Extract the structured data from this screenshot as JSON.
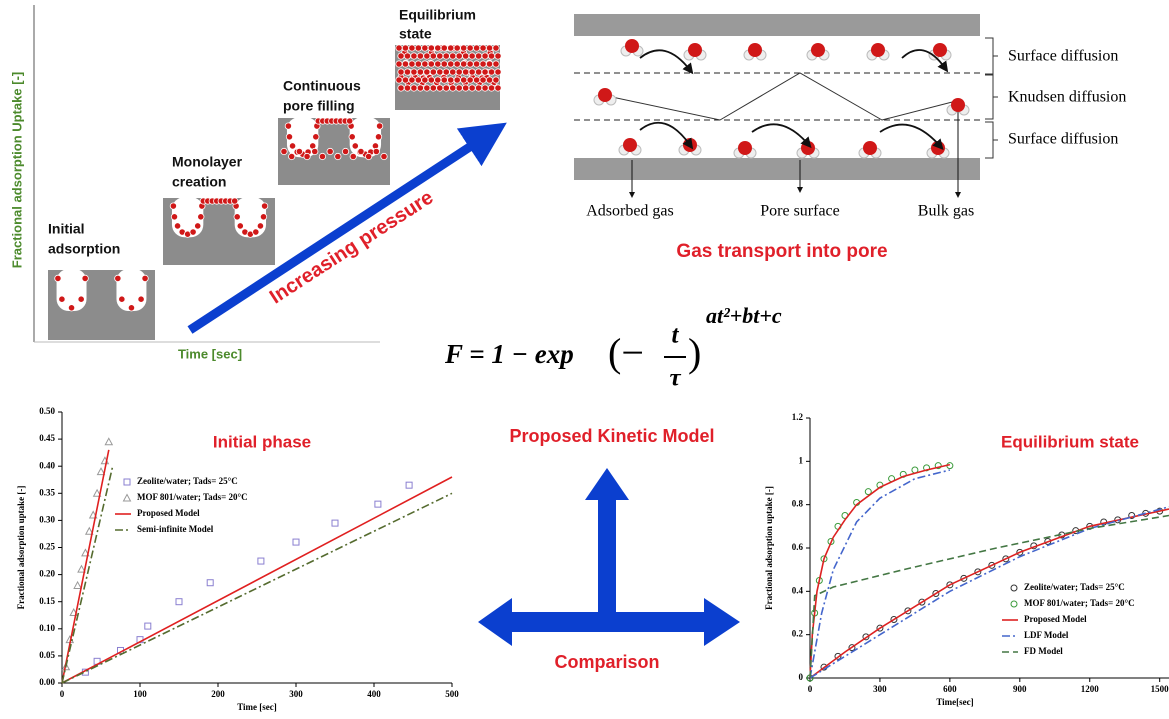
{
  "stages": {
    "y_label": "Fractional adsorption Uptake [-]",
    "x_label": "Time [sec]",
    "arrow_label": "Increasing pressure",
    "items": [
      "Initial",
      "adsorption",
      "Monolayer",
      "creation",
      "Continuous",
      "pore filling",
      "Equilibrium",
      "state"
    ]
  },
  "transport": {
    "title": "Gas transport into pore",
    "layers": [
      "Surface diffusion",
      "Knudsen diffusion",
      "Surface diffusion"
    ],
    "labels": [
      "Adsorbed gas",
      "Pore surface",
      "Bulk gas"
    ]
  },
  "equation": {
    "lhs": "F = 1 − exp",
    "open": "(−",
    "numerator": "t",
    "denominator": "τ",
    "close": ")",
    "exponent": "at²+bt+c"
  },
  "center": {
    "title": "Proposed Kinetic Model",
    "label": "Comparison"
  },
  "chart_data": [
    {
      "type": "line",
      "title": "Initial phase",
      "xlabel": "Time [sec]",
      "ylabel": "Fractional adsorption uptake [-]",
      "xlim": [
        0,
        500
      ],
      "xticks": [
        0,
        100,
        200,
        300,
        400,
        500
      ],
      "ylim": [
        0,
        0.5
      ],
      "yticks": [
        {
          "value": 0,
          "label": "0.00"
        },
        {
          "value": 0.05,
          "label": "0.05"
        },
        {
          "value": 0.1,
          "label": "0.10"
        },
        {
          "value": 0.15,
          "label": "0.15"
        },
        {
          "value": 0.2,
          "label": "0.20"
        },
        {
          "value": 0.25,
          "label": "0.25"
        },
        {
          "value": 0.3,
          "label": "0.30"
        },
        {
          "value": 0.35,
          "label": "0.35"
        },
        {
          "value": 0.4,
          "label": "0.40"
        },
        {
          "value": 0.45,
          "label": "0.45"
        },
        {
          "value": 0.5,
          "label": "0.50"
        }
      ],
      "legend": "upper left",
      "series": [
        {
          "name": "Zeolite/water; Tads= 25°C",
          "color": "#8a7fd0",
          "marker": "square",
          "x": [
            30,
            45,
            75,
            100,
            110,
            150,
            190,
            255,
            300,
            350,
            405,
            445
          ],
          "values": [
            0.02,
            0.04,
            0.06,
            0.08,
            0.105,
            0.15,
            0.185,
            0.225,
            0.26,
            0.295,
            0.33,
            0.365
          ]
        },
        {
          "name": "MOF 801/water; Tads= 20°C",
          "color": "#999999",
          "marker": "triangle",
          "x": [
            5,
            10,
            15,
            20,
            25,
            30,
            35,
            40,
            45,
            50,
            55,
            60
          ],
          "values": [
            0.03,
            0.08,
            0.13,
            0.18,
            0.21,
            0.24,
            0.28,
            0.31,
            0.35,
            0.39,
            0.41,
            0.445
          ]
        },
        {
          "name": "Proposed Model",
          "color": "#e02020",
          "dash": "solid",
          "x": [
            0,
            60,
            null,
            0,
            500
          ],
          "values": [
            0,
            0.43,
            null,
            0,
            0.38
          ]
        },
        {
          "name": "Semi-infinite Model",
          "color": "#556b2f",
          "dash": "dashdot",
          "x": [
            0,
            65,
            null,
            0,
            500
          ],
          "values": [
            0,
            0.4,
            null,
            0,
            0.35
          ]
        }
      ]
    },
    {
      "type": "line",
      "title": "Equilibrium state",
      "xlabel": "Time[sec]",
      "ylabel": "Fractional adsorption uptake [-]",
      "xlim": [
        0,
        1540
      ],
      "xticks": [
        0,
        300,
        600,
        900,
        1200,
        1500
      ],
      "ylim": [
        0,
        1.2
      ],
      "yticks": [
        0,
        0.2,
        0.4,
        0.6,
        0.8,
        1,
        1.2
      ],
      "legend": "lower right",
      "series": [
        {
          "name": "Zeolite/water; Tads= 25°C",
          "color": "#333333",
          "marker": "circle",
          "x": [
            0,
            60,
            120,
            180,
            240,
            300,
            360,
            420,
            480,
            540,
            600,
            660,
            720,
            780,
            840,
            900,
            960,
            1020,
            1080,
            1140,
            1200,
            1260,
            1320,
            1380,
            1440,
            1500
          ],
          "values": [
            0,
            0.05,
            0.1,
            0.14,
            0.19,
            0.23,
            0.27,
            0.31,
            0.35,
            0.39,
            0.43,
            0.46,
            0.49,
            0.52,
            0.55,
            0.58,
            0.61,
            0.63,
            0.66,
            0.68,
            0.7,
            0.72,
            0.73,
            0.75,
            0.76,
            0.77
          ]
        },
        {
          "name": "MOF 801/water; Tads= 20°C",
          "color": "#3a9a3a",
          "marker": "circle",
          "x": [
            0,
            20,
            40,
            60,
            90,
            120,
            150,
            200,
            250,
            300,
            350,
            400,
            450,
            500,
            550,
            600
          ],
          "values": [
            0,
            0.3,
            0.45,
            0.55,
            0.63,
            0.7,
            0.75,
            0.81,
            0.86,
            0.89,
            0.92,
            0.94,
            0.96,
            0.97,
            0.98,
            0.98
          ]
        },
        {
          "name": "Proposed Model",
          "color": "#dd2222",
          "dash": "solid",
          "x": [
            0,
            10,
            30,
            60,
            100,
            150,
            200,
            300,
            400,
            500,
            600,
            null,
            0,
            150,
            300,
            600,
            900,
            1200,
            1540
          ],
          "values": [
            0,
            0.2,
            0.4,
            0.55,
            0.65,
            0.73,
            0.8,
            0.88,
            0.93,
            0.96,
            0.985,
            null,
            0,
            0.12,
            0.23,
            0.43,
            0.58,
            0.7,
            0.78
          ]
        },
        {
          "name": "LDF Model",
          "color": "#4466cc",
          "dash": "dashdot",
          "x": [
            0,
            50,
            100,
            200,
            300,
            450,
            600,
            null,
            0,
            300,
            600,
            900,
            1200,
            1540
          ],
          "values": [
            0,
            0.3,
            0.5,
            0.72,
            0.83,
            0.92,
            0.96,
            null,
            0,
            0.2,
            0.4,
            0.56,
            0.69,
            0.79
          ]
        },
        {
          "name": "FD Model",
          "color": "#447744",
          "dash": "dash",
          "x": [
            0,
            20,
            100,
            400,
            800,
            1200,
            1540
          ],
          "values": [
            0,
            0.38,
            0.42,
            0.5,
            0.6,
            0.69,
            0.75
          ]
        }
      ]
    }
  ]
}
